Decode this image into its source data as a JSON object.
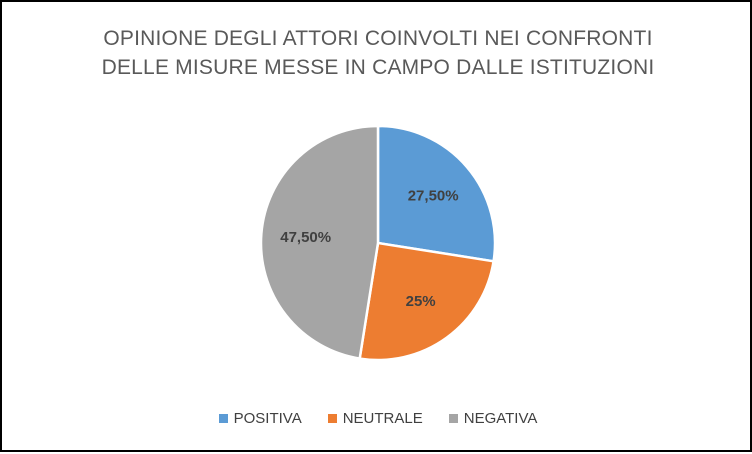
{
  "chart_data": {
    "type": "pie",
    "title_lines": [
      "OPINIONE DEGLI ATTORI COINVOLTI NEI CONFRONTI",
      "DELLE MISURE MESSE IN CAMPO DALLE ISTITUZIONI"
    ],
    "slices": [
      {
        "label": "POSITIVA",
        "value": 27.5,
        "data_label": "27,50%",
        "color": "#5B9BD5"
      },
      {
        "label": "NEUTRALE",
        "value": 25,
        "data_label": "25%",
        "color": "#ED7D31"
      },
      {
        "label": "NEGATIVA",
        "value": 47.5,
        "data_label": "47,50%",
        "color": "#A5A5A5"
      }
    ],
    "start_angle": "12 o'clock",
    "direction": "clockwise",
    "legend_position": "bottom"
  }
}
